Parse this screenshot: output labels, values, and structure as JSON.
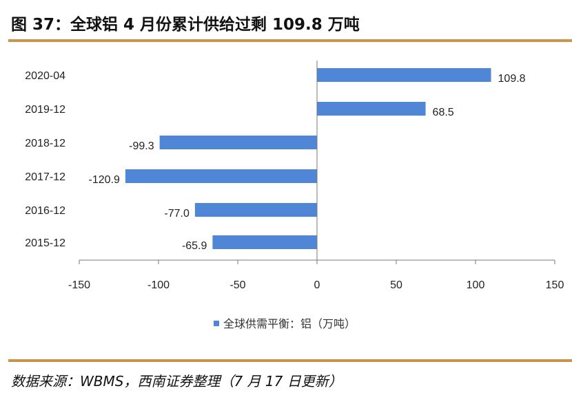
{
  "title": "图 37：全球铝 4 月份累计供给过剩 109.8 万吨",
  "source": "数据来源：WBMS，西南证券整理（7 月 17 日更新）",
  "chart_data": {
    "type": "bar",
    "orientation": "horizontal",
    "categories": [
      "2020-04",
      "2019-12",
      "2018-12",
      "2017-12",
      "2016-12",
      "2015-12"
    ],
    "series": [
      {
        "name": "全球供需平衡：铝（万吨）",
        "values": [
          109.8,
          68.5,
          -99.3,
          -120.9,
          -77.0,
          -65.9
        ]
      }
    ],
    "data_labels": [
      "109.8",
      "68.5",
      "-99.3",
      "-120.9",
      "-77.0",
      "-65.9"
    ],
    "xlim": [
      -150,
      150
    ],
    "xticks": [
      "-150",
      "-100",
      "-50",
      "0",
      "50",
      "100",
      "150"
    ],
    "grid": false,
    "legend": "bottom",
    "color": "#4f86d6"
  }
}
